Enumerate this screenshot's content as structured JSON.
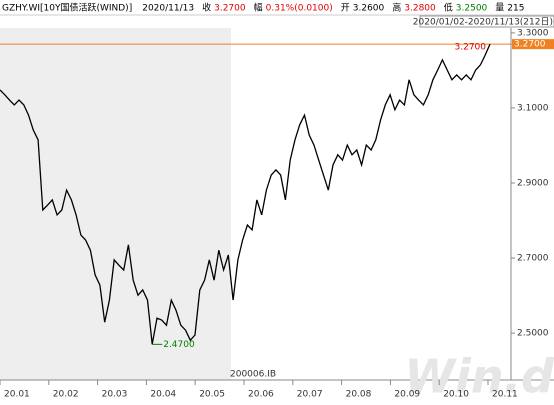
{
  "header": {
    "title": "GZHY.WI[10Y国债活跃(WIND)]",
    "date": "2020/11/13",
    "items": [
      {
        "label": "收",
        "value": "3.2700",
        "color": "#e00000"
      },
      {
        "label": "幅",
        "value": "0.31%(0.0100)",
        "color": "#e00000"
      },
      {
        "label": "开",
        "value": "3.2600",
        "color": "#000000"
      },
      {
        "label": "高",
        "value": "3.2800",
        "color": "#e00000"
      },
      {
        "label": "低",
        "value": "3.2500",
        "color": "#008000"
      },
      {
        "label": "量",
        "value": "215",
        "color": "#000000"
      }
    ],
    "range": "2020/01/02-2020/11/13(212日)"
  },
  "chart_data": {
    "type": "line",
    "series": [
      {
        "name": "GZHY.WI",
        "color": "#000000",
        "values": [
          3.148,
          3.135,
          3.121,
          3.108,
          3.121,
          3.108,
          3.081,
          3.041,
          3.015,
          2.828,
          2.841,
          2.855,
          2.815,
          2.828,
          2.881,
          2.855,
          2.815,
          2.761,
          2.748,
          2.721,
          2.655,
          2.628,
          2.529,
          2.588,
          2.695,
          2.681,
          2.668,
          2.735,
          2.641,
          2.601,
          2.615,
          2.588,
          2.47,
          2.54,
          2.535,
          2.521,
          2.588,
          2.561,
          2.521,
          2.508,
          2.481,
          2.495,
          2.615,
          2.641,
          2.695,
          2.641,
          2.721,
          2.668,
          2.708,
          2.588,
          2.695,
          2.748,
          2.788,
          2.775,
          2.855,
          2.815,
          2.881,
          2.921,
          2.935,
          2.921,
          2.855,
          2.961,
          3.015,
          3.055,
          3.081,
          3.028,
          3.001,
          2.961,
          2.921,
          2.881,
          2.948,
          2.975,
          2.961,
          3.001,
          2.975,
          2.988,
          2.948,
          3.001,
          2.988,
          3.015,
          3.068,
          3.108,
          3.135,
          3.095,
          3.121,
          3.108,
          3.175,
          3.135,
          3.121,
          3.108,
          3.135,
          3.175,
          3.201,
          3.228,
          3.201,
          3.175,
          3.188,
          3.175,
          3.188,
          3.175,
          3.201,
          3.215,
          3.241,
          3.27
        ]
      }
    ],
    "x_labels": [
      "20.01",
      "20.02",
      "20.03",
      "20.04",
      "20.05",
      "20.06",
      "20.07",
      "20.08",
      "20.09",
      "20.10",
      "20.11"
    ],
    "ylim": [
      2.375,
      3.313
    ],
    "yticks": [
      {
        "value": 2.5,
        "label": "2.5000"
      },
      {
        "value": 2.7,
        "label": "2.7000"
      },
      {
        "value": 2.9,
        "label": "2.9000"
      },
      {
        "value": 3.1,
        "label": "3.1000"
      },
      {
        "value": 3.3,
        "label": "3.3000"
      }
    ],
    "last_price": {
      "value": 3.27,
      "label": "3.2700"
    },
    "max_label": "3.2700",
    "min_label": "2.4700",
    "code_label": "200006.IB",
    "watermark": "Win.d"
  }
}
